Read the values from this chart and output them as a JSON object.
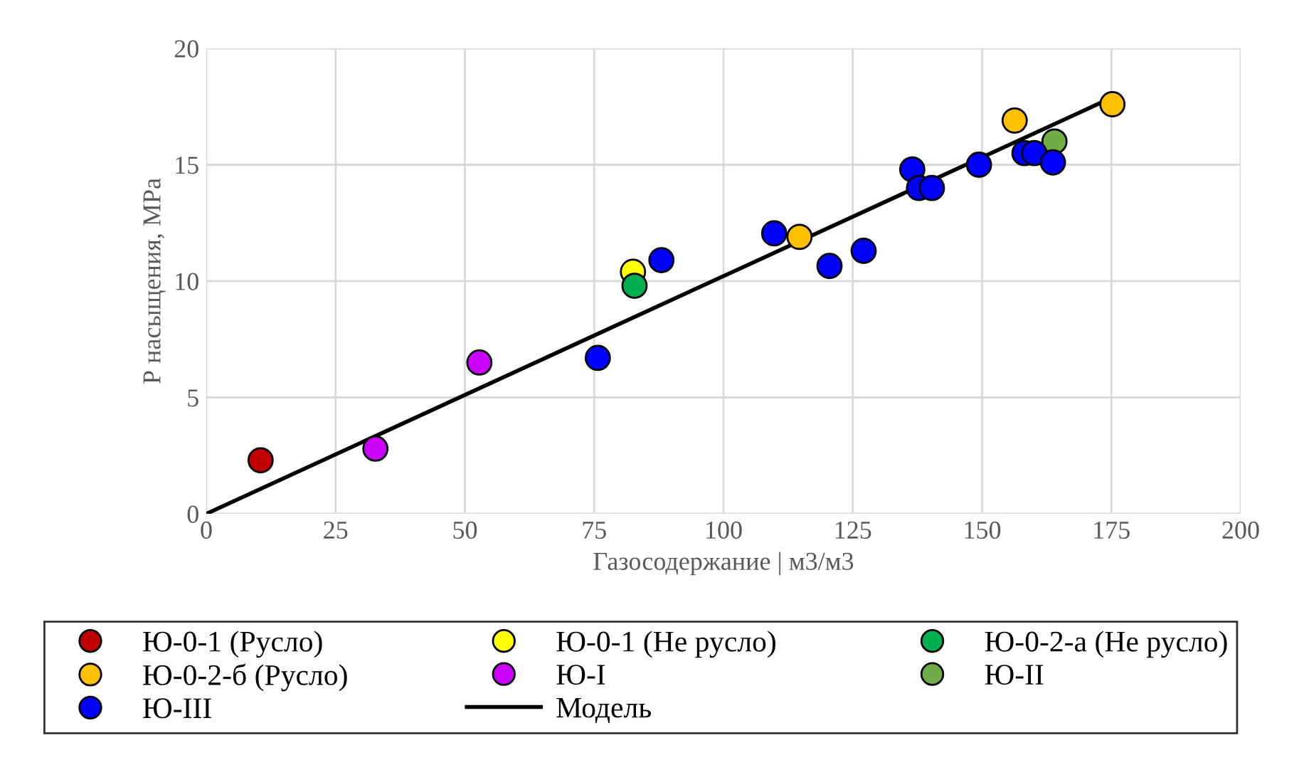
{
  "chart_data": {
    "type": "scatter",
    "xlabel": "Газосодержание | м3/м3",
    "ylabel": "Р насыщения, МРа",
    "xlim": [
      0,
      200
    ],
    "ylim": [
      0,
      20
    ],
    "xticks": [
      0,
      25,
      50,
      75,
      100,
      125,
      150,
      175,
      200
    ],
    "yticks": [
      0,
      5,
      10,
      15,
      20
    ],
    "grid": true,
    "legend": "bottom",
    "marker": "circle",
    "series": [
      {
        "name": "Ю-0-1 (Русло)",
        "color": "#c00000",
        "x": [
          10.5
        ],
        "values": [
          2.3
        ]
      },
      {
        "name": "Ю-0-1 (Не русло)",
        "color": "#ffff00",
        "x": [
          82.5
        ],
        "values": [
          10.4
        ]
      },
      {
        "name": "Ю-0-2-а (Не русло)",
        "color": "#00b050",
        "x": [
          82.8
        ],
        "values": [
          9.8
        ]
      },
      {
        "name": "Ю-0-2-б (Русло)",
        "color": "#ffc000",
        "x": [
          114.7,
          156.3,
          175.2
        ],
        "values": [
          11.9,
          16.9,
          17.6
        ]
      },
      {
        "name": "Ю-I",
        "color": "#cc00ff",
        "x": [
          32.7,
          52.8
        ],
        "values": [
          2.8,
          6.5
        ]
      },
      {
        "name": "Ю-II",
        "color": "#70ad47",
        "x": [
          164
        ],
        "values": [
          16.0
        ]
      },
      {
        "name": "Ю-III",
        "color": "#0000ff",
        "x": [
          75.7,
          88,
          109.8,
          120.5,
          127.1,
          136.5,
          137.8,
          140.3,
          149.4,
          158.2,
          160.1,
          163.7
        ],
        "values": [
          6.7,
          10.9,
          12.05,
          10.65,
          11.3,
          14.8,
          14.0,
          14.0,
          15.0,
          15.5,
          15.5,
          15.1
        ]
      },
      {
        "name": "Модель",
        "type": "line",
        "marker": "none",
        "color": "#000000",
        "x": [
          0,
          173.3
        ],
        "values": [
          0,
          17.7
        ]
      }
    ]
  }
}
